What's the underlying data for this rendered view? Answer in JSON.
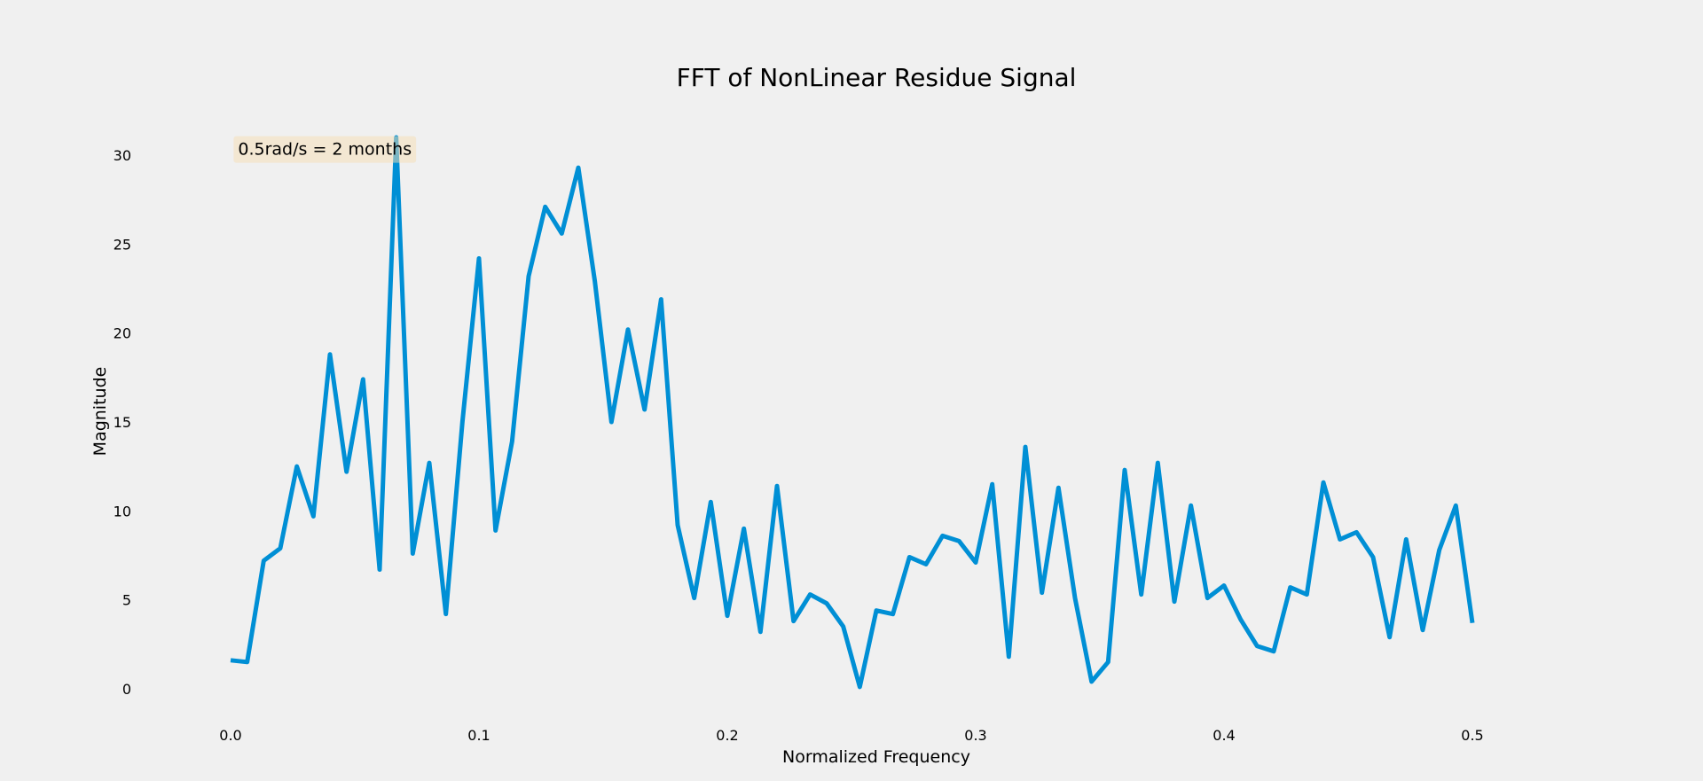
{
  "chart_data": {
    "type": "line",
    "title": "FFT of NonLinear Residue Signal",
    "xlabel": "Normalized Frequency",
    "ylabel": "Magnitude",
    "xlim": [
      -0.02,
      0.54
    ],
    "ylim": [
      -1.5,
      32
    ],
    "x_ticks": [
      0.0,
      0.1,
      0.2,
      0.3,
      0.4,
      0.5
    ],
    "x_tick_labels": [
      "0.0",
      "0.1",
      "0.2",
      "0.3",
      "0.4",
      "0.5"
    ],
    "y_ticks": [
      0,
      5,
      10,
      15,
      20,
      25,
      30
    ],
    "y_tick_labels": [
      "0",
      "5",
      "10",
      "15",
      "20",
      "25",
      "30"
    ],
    "grid": false,
    "series": [
      {
        "color": "#008fd5",
        "x": [
          0.0,
          0.0066667,
          0.0133333,
          0.02,
          0.0266667,
          0.0333333,
          0.04,
          0.0466667,
          0.0533333,
          0.06,
          0.0666667,
          0.0733333,
          0.08,
          0.0866667,
          0.0933333,
          0.1,
          0.1066667,
          0.1133333,
          0.12,
          0.1266667,
          0.1333333,
          0.14,
          0.1466667,
          0.1533333,
          0.16,
          0.1666667,
          0.1733333,
          0.18,
          0.1866667,
          0.1933333,
          0.2,
          0.2066667,
          0.2133333,
          0.22,
          0.2266667,
          0.2333333,
          0.24,
          0.2466667,
          0.2533333,
          0.26,
          0.2666667,
          0.2733333,
          0.28,
          0.2866667,
          0.2933333,
          0.3,
          0.3066667,
          0.3133333,
          0.32,
          0.3266667,
          0.3333333,
          0.34,
          0.3466667,
          0.3533333,
          0.36,
          0.3666667,
          0.3733333,
          0.38,
          0.3866667,
          0.3933333,
          0.4,
          0.4066667,
          0.4133333,
          0.42,
          0.4266667,
          0.4333333,
          0.44,
          0.4466667,
          0.4533333,
          0.46,
          0.4666667,
          0.4733333,
          0.48,
          0.4866667,
          0.4933333,
          0.5
        ],
        "y": [
          1.6,
          1.5,
          7.2,
          7.9,
          12.5,
          9.7,
          18.8,
          12.2,
          17.4,
          6.7,
          31.0,
          7.6,
          12.7,
          4.2,
          15.0,
          24.2,
          8.9,
          13.9,
          23.2,
          27.1,
          25.6,
          29.3,
          22.9,
          15.0,
          20.2,
          15.7,
          21.9,
          9.2,
          5.1,
          10.5,
          4.1,
          9.0,
          3.2,
          11.4,
          3.8,
          5.3,
          4.8,
          3.5,
          0.1,
          4.4,
          4.2,
          7.4,
          7.0,
          8.6,
          8.3,
          7.1,
          11.5,
          1.8,
          13.6,
          5.4,
          11.3,
          5.1,
          0.4,
          1.5,
          12.3,
          5.3,
          12.7,
          4.9,
          10.3,
          5.1,
          5.8,
          3.9,
          2.4,
          2.1,
          5.7,
          5.3,
          11.6,
          8.4,
          8.8,
          7.4,
          2.9,
          8.4,
          3.3,
          7.8,
          10.3,
          3.7
        ]
      }
    ],
    "annotations": [
      {
        "text": "0.5rad/s = 2 months",
        "x": 0.003,
        "y": 30.3,
        "box_color": "#f5deb3",
        "box_opacity": 0.5
      }
    ]
  }
}
